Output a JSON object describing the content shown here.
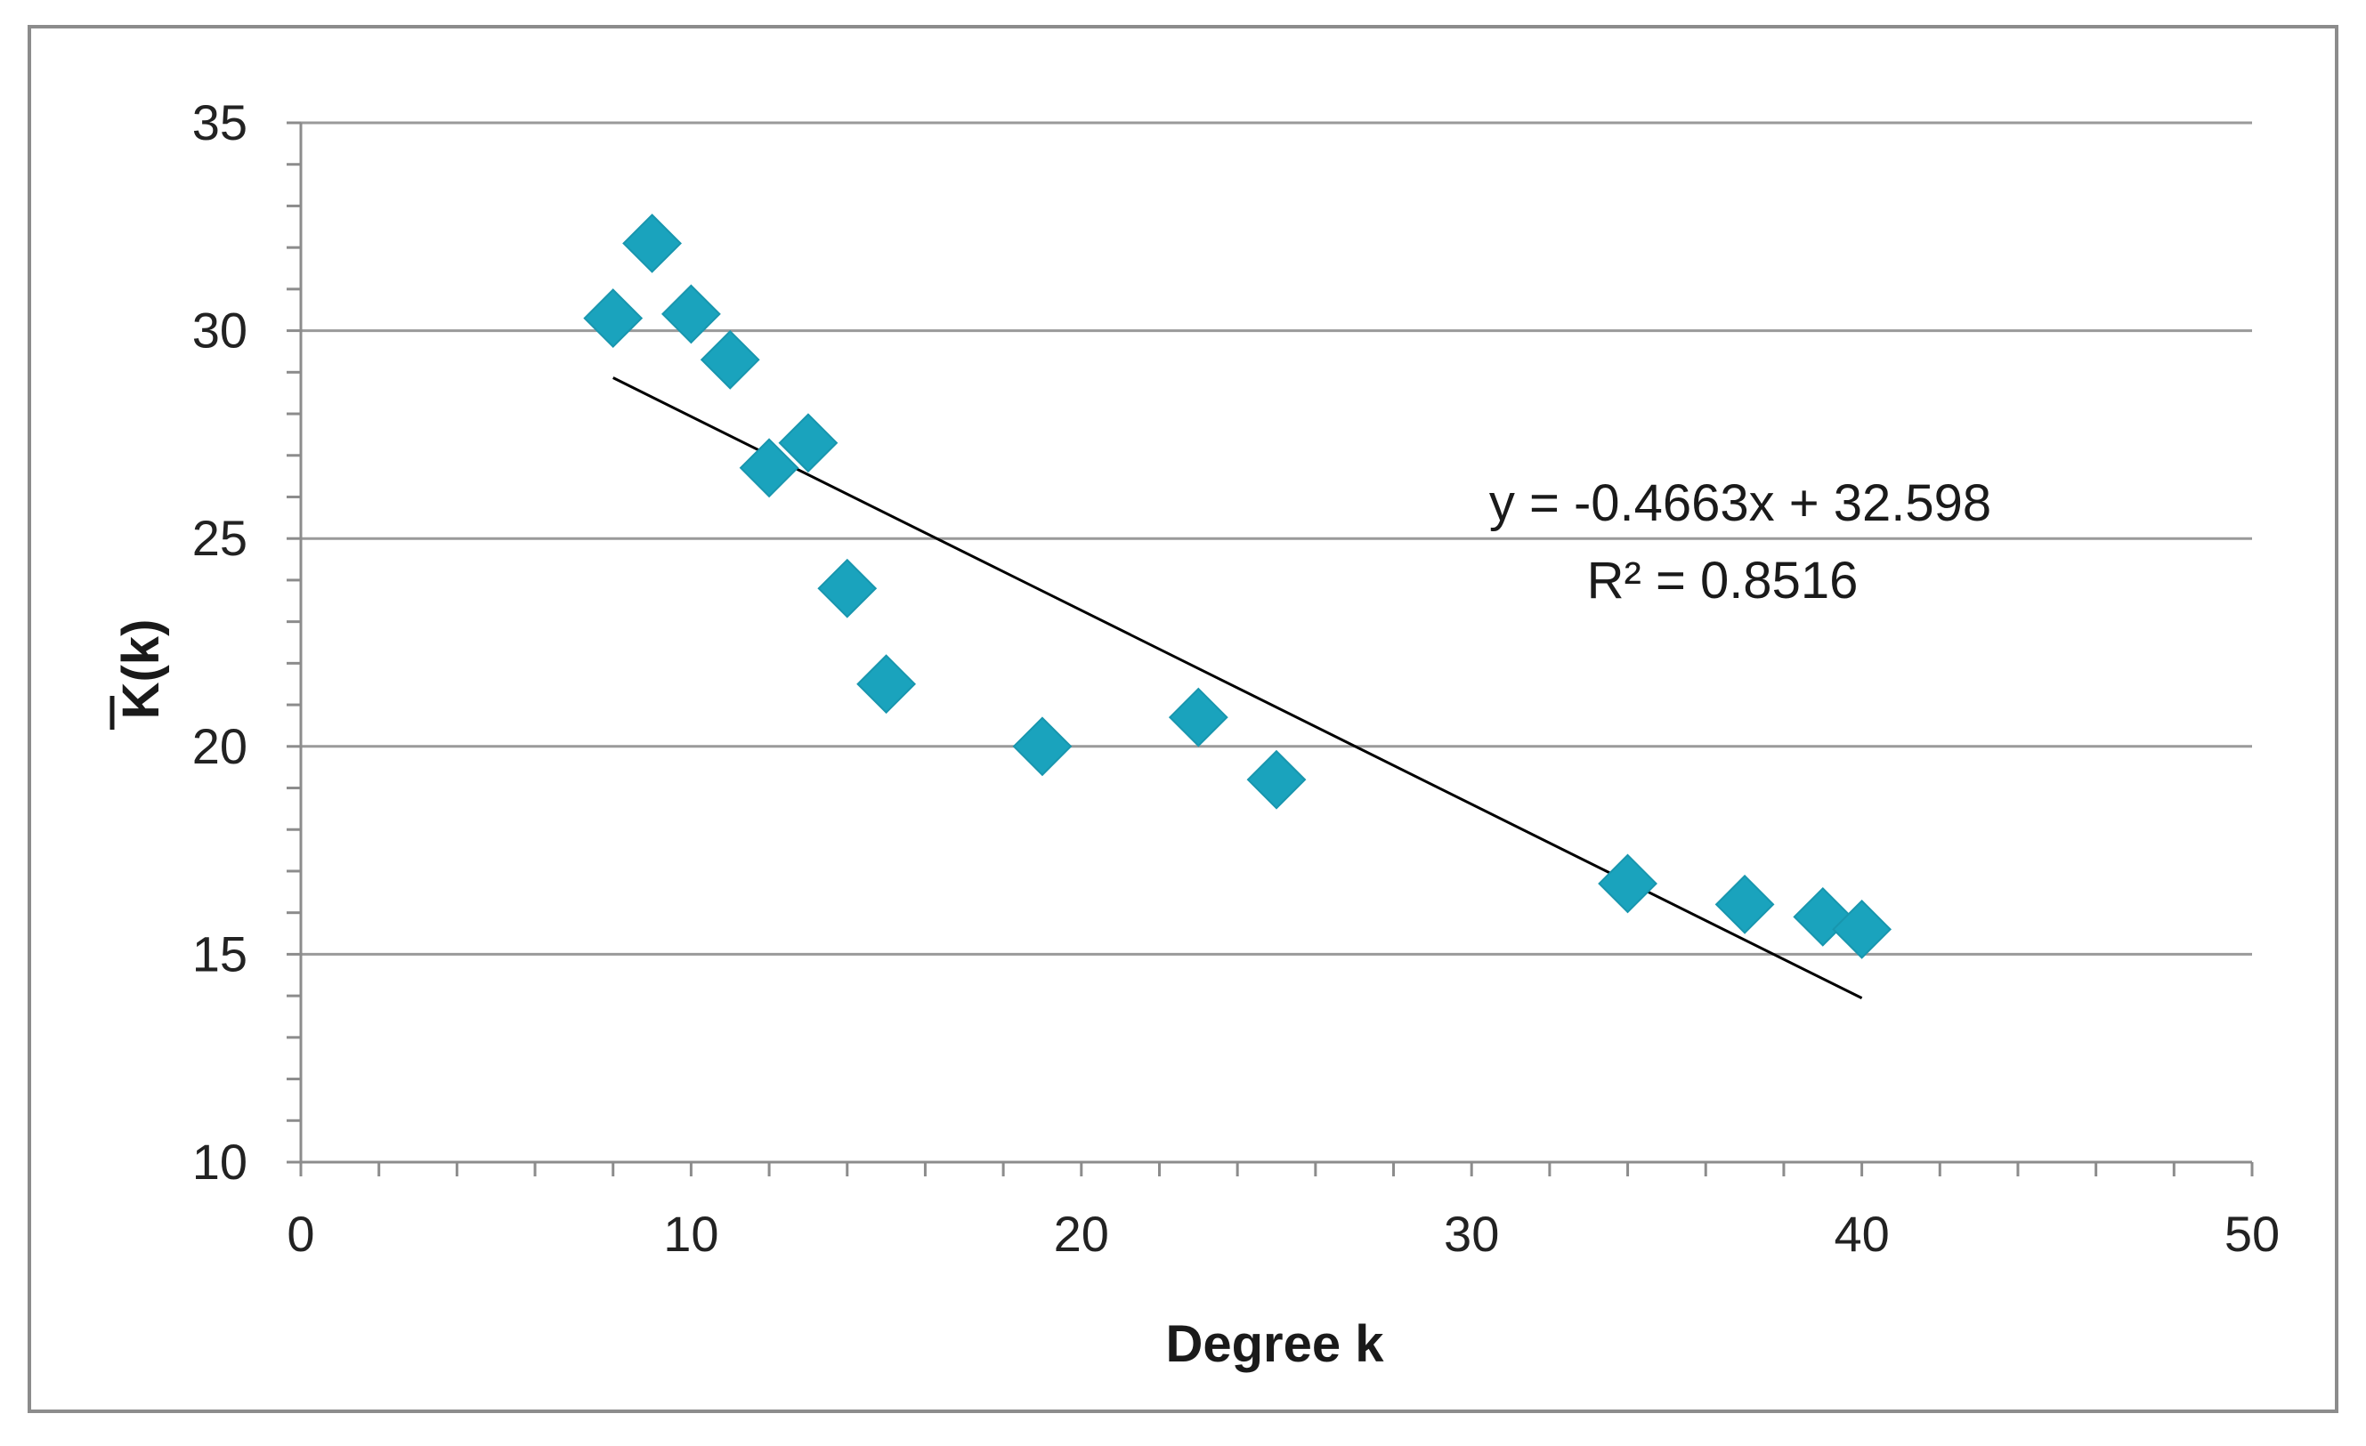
{
  "chart_data": {
    "type": "scatter",
    "title": "",
    "xlabel": "Degree k",
    "ylabel": "K(k)",
    "ylabel_overbar": true,
    "xlim": [
      0,
      50
    ],
    "ylim": [
      10,
      35
    ],
    "xticks": [
      0,
      10,
      20,
      30,
      40,
      50
    ],
    "yticks": [
      10,
      15,
      20,
      25,
      30,
      35
    ],
    "x_minor_step": 2,
    "y_minor_step": 1,
    "grid": "horizontal-major",
    "legend": "none",
    "series": [
      {
        "name": "K(k)",
        "marker": "diamond",
        "color": "#1aa3bd",
        "points": [
          {
            "x": 8,
            "y": 30.3
          },
          {
            "x": 9,
            "y": 32.1
          },
          {
            "x": 10,
            "y": 30.4
          },
          {
            "x": 11,
            "y": 29.3
          },
          {
            "x": 12,
            "y": 26.7
          },
          {
            "x": 13,
            "y": 27.3
          },
          {
            "x": 14,
            "y": 23.8
          },
          {
            "x": 15,
            "y": 21.5
          },
          {
            "x": 19,
            "y": 20.0
          },
          {
            "x": 23,
            "y": 20.7
          },
          {
            "x": 25,
            "y": 19.2
          },
          {
            "x": 34,
            "y": 16.7
          },
          {
            "x": 37,
            "y": 16.2
          },
          {
            "x": 39,
            "y": 15.9
          },
          {
            "x": 40,
            "y": 15.6
          }
        ]
      }
    ],
    "trendline": {
      "type": "linear",
      "slope": -0.4663,
      "intercept": 32.598,
      "x_start": 8,
      "x_end": 40,
      "color": "#000000"
    },
    "annotations": {
      "equation": "y = -0.4663x + 32.598",
      "r_squared": "R² = 0.8516"
    }
  }
}
